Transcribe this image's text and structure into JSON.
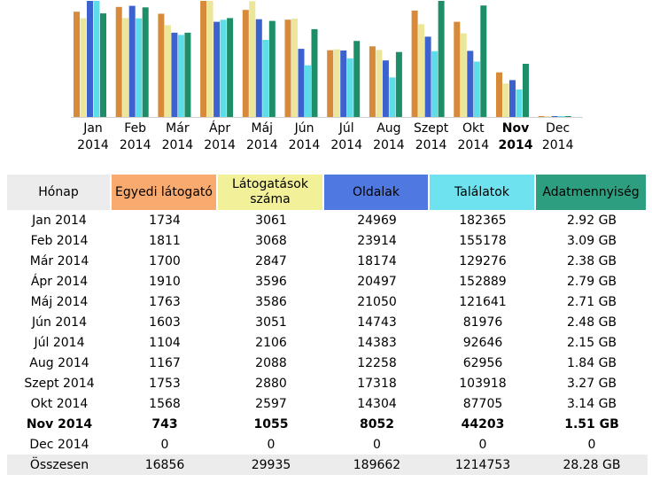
{
  "colors": {
    "visitors": "#d68a3a",
    "visits": "#ece69a",
    "pages": "#3b62cf",
    "hits": "#5cdde8",
    "bandwidth": "#1e8e69"
  },
  "chart_data": {
    "type": "bar",
    "categories": [
      "Jan 2014",
      "Feb 2014",
      "Már 2014",
      "Ápr 2014",
      "Máj 2014",
      "Jún 2014",
      "Júl 2014",
      "Aug 2014",
      "Szept 2014",
      "Okt 2014",
      "Nov 2014",
      "Dec 2014"
    ],
    "month_labels": [
      {
        "m": "Jan",
        "y": "2014"
      },
      {
        "m": "Feb",
        "y": "2014"
      },
      {
        "m": "Már",
        "y": "2014"
      },
      {
        "m": "Ápr",
        "y": "2014"
      },
      {
        "m": "Máj",
        "y": "2014"
      },
      {
        "m": "Jún",
        "y": "2014"
      },
      {
        "m": "Júl",
        "y": "2014"
      },
      {
        "m": "Aug",
        "y": "2014"
      },
      {
        "m": "Szept",
        "y": "2014"
      },
      {
        "m": "Okt",
        "y": "2014"
      },
      {
        "m": "Nov",
        "y": "2014"
      },
      {
        "m": "Dec",
        "y": "2014"
      }
    ],
    "current_index": 10,
    "series": [
      {
        "name": "Egyedi látogató",
        "values": [
          1734,
          1811,
          1700,
          1910,
          1763,
          1603,
          1104,
          1167,
          1753,
          1568,
          743,
          0
        ]
      },
      {
        "name": "Látogatások száma",
        "values": [
          3061,
          3068,
          2847,
          3596,
          3586,
          3051,
          2106,
          2088,
          2880,
          2597,
          1055,
          0
        ]
      },
      {
        "name": "Oldalak",
        "values": [
          24969,
          23914,
          18174,
          20497,
          21050,
          14743,
          14383,
          12258,
          17318,
          14304,
          8052,
          0
        ]
      },
      {
        "name": "Találatok",
        "values": [
          182365,
          155178,
          129276,
          152889,
          121641,
          81976,
          92646,
          62956,
          103918,
          87705,
          44203,
          0
        ]
      },
      {
        "name": "Adatmennyiség",
        "values": [
          2.92,
          3.09,
          2.38,
          2.79,
          2.71,
          2.48,
          2.15,
          1.84,
          3.27,
          3.14,
          1.51,
          0
        ]
      }
    ]
  },
  "table": {
    "headers": {
      "month": "Hónap",
      "visitors": "Egyedi látogató",
      "visits": "Látogatások száma",
      "pages": "Oldalak",
      "hits": "Találatok",
      "bandwidth": "Adatmennyiség"
    },
    "rows": [
      {
        "month": "Jan 2014",
        "visitors": "1734",
        "visits": "3061",
        "pages": "24969",
        "hits": "182365",
        "bandwidth": "2.92 GB"
      },
      {
        "month": "Feb 2014",
        "visitors": "1811",
        "visits": "3068",
        "pages": "23914",
        "hits": "155178",
        "bandwidth": "3.09 GB"
      },
      {
        "month": "Már 2014",
        "visitors": "1700",
        "visits": "2847",
        "pages": "18174",
        "hits": "129276",
        "bandwidth": "2.38 GB"
      },
      {
        "month": "Ápr 2014",
        "visitors": "1910",
        "visits": "3596",
        "pages": "20497",
        "hits": "152889",
        "bandwidth": "2.79 GB"
      },
      {
        "month": "Máj 2014",
        "visitors": "1763",
        "visits": "3586",
        "pages": "21050",
        "hits": "121641",
        "bandwidth": "2.71 GB"
      },
      {
        "month": "Jún 2014",
        "visitors": "1603",
        "visits": "3051",
        "pages": "14743",
        "hits": "81976",
        "bandwidth": "2.48 GB"
      },
      {
        "month": "Júl 2014",
        "visitors": "1104",
        "visits": "2106",
        "pages": "14383",
        "hits": "92646",
        "bandwidth": "2.15 GB"
      },
      {
        "month": "Aug 2014",
        "visitors": "1167",
        "visits": "2088",
        "pages": "12258",
        "hits": "62956",
        "bandwidth": "1.84 GB"
      },
      {
        "month": "Szept 2014",
        "visitors": "1753",
        "visits": "2880",
        "pages": "17318",
        "hits": "103918",
        "bandwidth": "3.27 GB"
      },
      {
        "month": "Okt 2014",
        "visitors": "1568",
        "visits": "2597",
        "pages": "14304",
        "hits": "87705",
        "bandwidth": "3.14 GB"
      },
      {
        "month": "Nov 2014",
        "visitors": "743",
        "visits": "1055",
        "pages": "8052",
        "hits": "44203",
        "bandwidth": "1.51 GB"
      },
      {
        "month": "Dec 2014",
        "visitors": "0",
        "visits": "0",
        "pages": "0",
        "hits": "0",
        "bandwidth": "0"
      }
    ],
    "total": {
      "month": "Összesen",
      "visitors": "16856",
      "visits": "29935",
      "pages": "189662",
      "hits": "1214753",
      "bandwidth": "28.28 GB"
    }
  }
}
